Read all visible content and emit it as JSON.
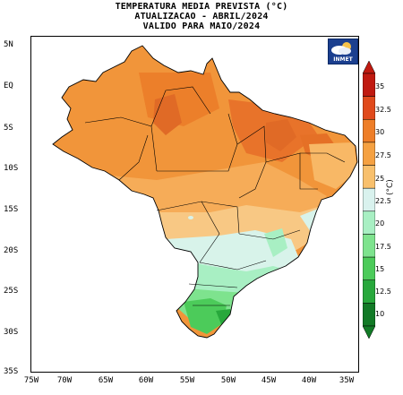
{
  "title": {
    "line1": "TEMPERATURA MEDIA PREVISTA (°C)",
    "line2": "ATUALIZACAO - ABRIL/2024",
    "line3": "VALIDO PARA MAIO/2024"
  },
  "logo": {
    "name": "inmet-logo",
    "text": "INMET"
  },
  "axes": {
    "lat_labels": [
      "5N",
      "EQ",
      "5S",
      "10S",
      "15S",
      "20S",
      "25S",
      "30S",
      "35S"
    ],
    "lon_labels": [
      "75W",
      "70W",
      "65W",
      "60W",
      "55W",
      "50W",
      "45W",
      "40W",
      "35W"
    ],
    "lat_range": [
      -35,
      5
    ],
    "lon_range": [
      -75,
      -35
    ]
  },
  "colorbar": {
    "unit": "(°C)",
    "labels": [
      "35",
      "32.5",
      "30",
      "27.5",
      "25",
      "22.5",
      "20",
      "17.5",
      "15",
      "12.5",
      "10"
    ],
    "colors": [
      "#c01a10",
      "#e04a1c",
      "#ee7e28",
      "#f5a142",
      "#f8c06d",
      "#d9f2ee",
      "#a8efc3",
      "#7ee38e",
      "#4ccb5a",
      "#28a83c",
      "#127a26"
    ]
  }
}
